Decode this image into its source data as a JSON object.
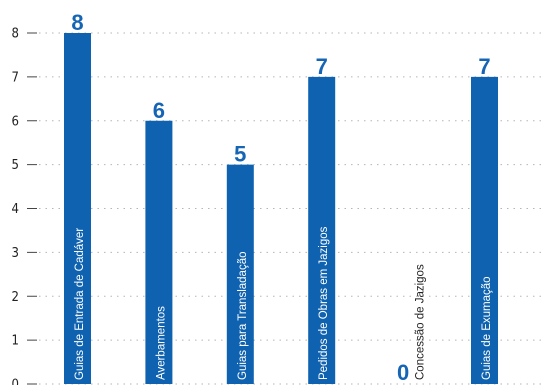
{
  "chart_data": {
    "type": "bar",
    "categories": [
      "Guias de Entrada de Cadáver",
      "Averbamentos",
      "Guias para Transladação",
      "Pedidos de Obras em Jazigos",
      "Concessão de Jazigos",
      "Guias de Exumação"
    ],
    "values": [
      8,
      6,
      5,
      7,
      0,
      7
    ],
    "y_ticks": [
      "0",
      "1",
      "2",
      "3",
      "4",
      "5",
      "6",
      "7",
      "8"
    ],
    "ylim": [
      0,
      8
    ],
    "title": "",
    "xlabel": "",
    "ylabel": "",
    "grid": true,
    "colors": {
      "bar": "#0f62b0",
      "label_value": "#1565b4",
      "grid": "#b5b5b5",
      "axis": "#444444"
    }
  }
}
